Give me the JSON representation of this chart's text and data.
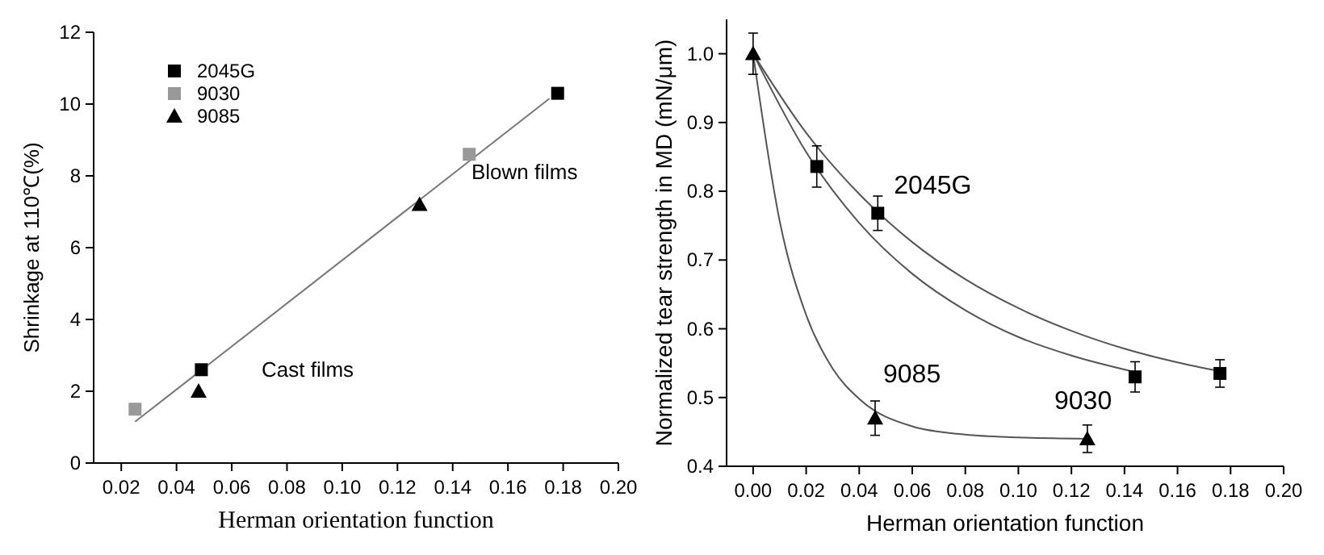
{
  "chart_data": [
    {
      "type": "scatter",
      "xlabel": "Herman  orientation function",
      "ylabel": "Shrinkage at 110℃(%)",
      "xlim": [
        0.01,
        0.2
      ],
      "xticks": [
        {
          "value": 0.02,
          "label": "0.02"
        },
        {
          "value": 0.04,
          "label": "0.04"
        },
        {
          "value": 0.06,
          "label": "0.06"
        },
        {
          "value": 0.08,
          "label": "0.08"
        },
        {
          "value": 0.1,
          "label": "0.10"
        },
        {
          "value": 0.12,
          "label": "0.12"
        },
        {
          "value": 0.14,
          "label": "0.14"
        },
        {
          "value": 0.16,
          "label": "0.16"
        },
        {
          "value": 0.18,
          "label": "0.18"
        },
        {
          "value": 0.2,
          "label": "0.20"
        }
      ],
      "ylim": [
        0,
        12
      ],
      "yticks": [
        0,
        2,
        4,
        6,
        8,
        10,
        12
      ],
      "grid": false,
      "legend": "top left",
      "series": [
        {
          "name": "2045G",
          "color": "#000000",
          "marker": "square",
          "x": [
            0.049,
            0.178
          ],
          "values": [
            2.6,
            10.3
          ]
        },
        {
          "name": "9030",
          "color": "#999999",
          "marker": "square",
          "x": [
            0.025,
            0.146
          ],
          "values": [
            1.5,
            8.6
          ]
        },
        {
          "name": "9085",
          "color": "#000000",
          "marker": "triangle",
          "x": [
            0.048,
            0.128
          ],
          "values": [
            2.0,
            7.2
          ]
        },
        {
          "type": "line",
          "color": "#777777",
          "x": [
            0.025,
            0.175
          ],
          "values": [
            1.15,
            10.15
          ]
        }
      ],
      "annotations": [
        "Blown films",
        "Cast films"
      ]
    },
    {
      "type": "scatter",
      "xlabel": "Herman orientation function",
      "ylabel": "Normalized tear strength in MD (mN/μm)",
      "xlim": [
        -0.01,
        0.2
      ],
      "xticks": [
        {
          "value": 0,
          "label": "0.00"
        },
        {
          "value": 0.02,
          "label": "0.02"
        },
        {
          "value": 0.04,
          "label": "0.04"
        },
        {
          "value": 0.06,
          "label": "0.06"
        },
        {
          "value": 0.08,
          "label": "0.08"
        },
        {
          "value": 0.1,
          "label": "0.10"
        },
        {
          "value": 0.12,
          "label": "0.12"
        },
        {
          "value": 0.14,
          "label": "0.14"
        },
        {
          "value": 0.16,
          "label": "0.16"
        },
        {
          "value": 0.18,
          "label": "0.18"
        },
        {
          "value": 0.2,
          "label": "0.20"
        }
      ],
      "ylim": [
        0.4,
        1.05
      ],
      "yticks": [
        0.4,
        0.5,
        0.6,
        0.7,
        0.8,
        0.9,
        {
          "value": 1.0,
          "label": "1.0"
        }
      ],
      "grid": false,
      "legend": false,
      "series": [
        {
          "name": "2045G",
          "color": "#000000",
          "marker": "square",
          "x": [
            0.047,
            0.176
          ],
          "values": [
            0.768,
            0.535
          ],
          "errors": [
            0.025,
            0.02
          ]
        },
        {
          "name": "9030",
          "color": "#000000",
          "marker": "square",
          "x": [
            0.024,
            0.144
          ],
          "values": [
            0.836,
            0.53
          ],
          "errors": [
            0.03,
            0.022
          ]
        },
        {
          "name": "9085",
          "color": "#000000",
          "marker": "triangle",
          "x": [
            0,
            0.046,
            0.126
          ],
          "values": [
            1.0,
            0.47,
            0.44
          ],
          "errors": [
            0.03,
            0.025,
            0.02
          ]
        },
        {
          "type": "line",
          "color": "#555555",
          "x": [
            0,
            0.02,
            0.04,
            0.06,
            0.08,
            0.1,
            0.12,
            0.14,
            0.16,
            0.176
          ],
          "values": [
            1.0,
            0.885,
            0.796,
            0.726,
            0.672,
            0.63,
            0.597,
            0.571,
            0.551,
            0.538
          ]
        },
        {
          "type": "line",
          "color": "#555555",
          "x": [
            0,
            0.02,
            0.04,
            0.06,
            0.08,
            0.1,
            0.12,
            0.144
          ],
          "values": [
            1.0,
            0.857,
            0.754,
            0.68,
            0.627,
            0.588,
            0.561,
            0.537
          ]
        },
        {
          "type": "line",
          "color": "#555555",
          "x": [
            0,
            0.01,
            0.02,
            0.03,
            0.04,
            0.06,
            0.08,
            0.1,
            0.126
          ],
          "values": [
            1.0,
            0.757,
            0.62,
            0.542,
            0.498,
            0.458,
            0.446,
            0.442,
            0.44
          ]
        }
      ]
    }
  ]
}
